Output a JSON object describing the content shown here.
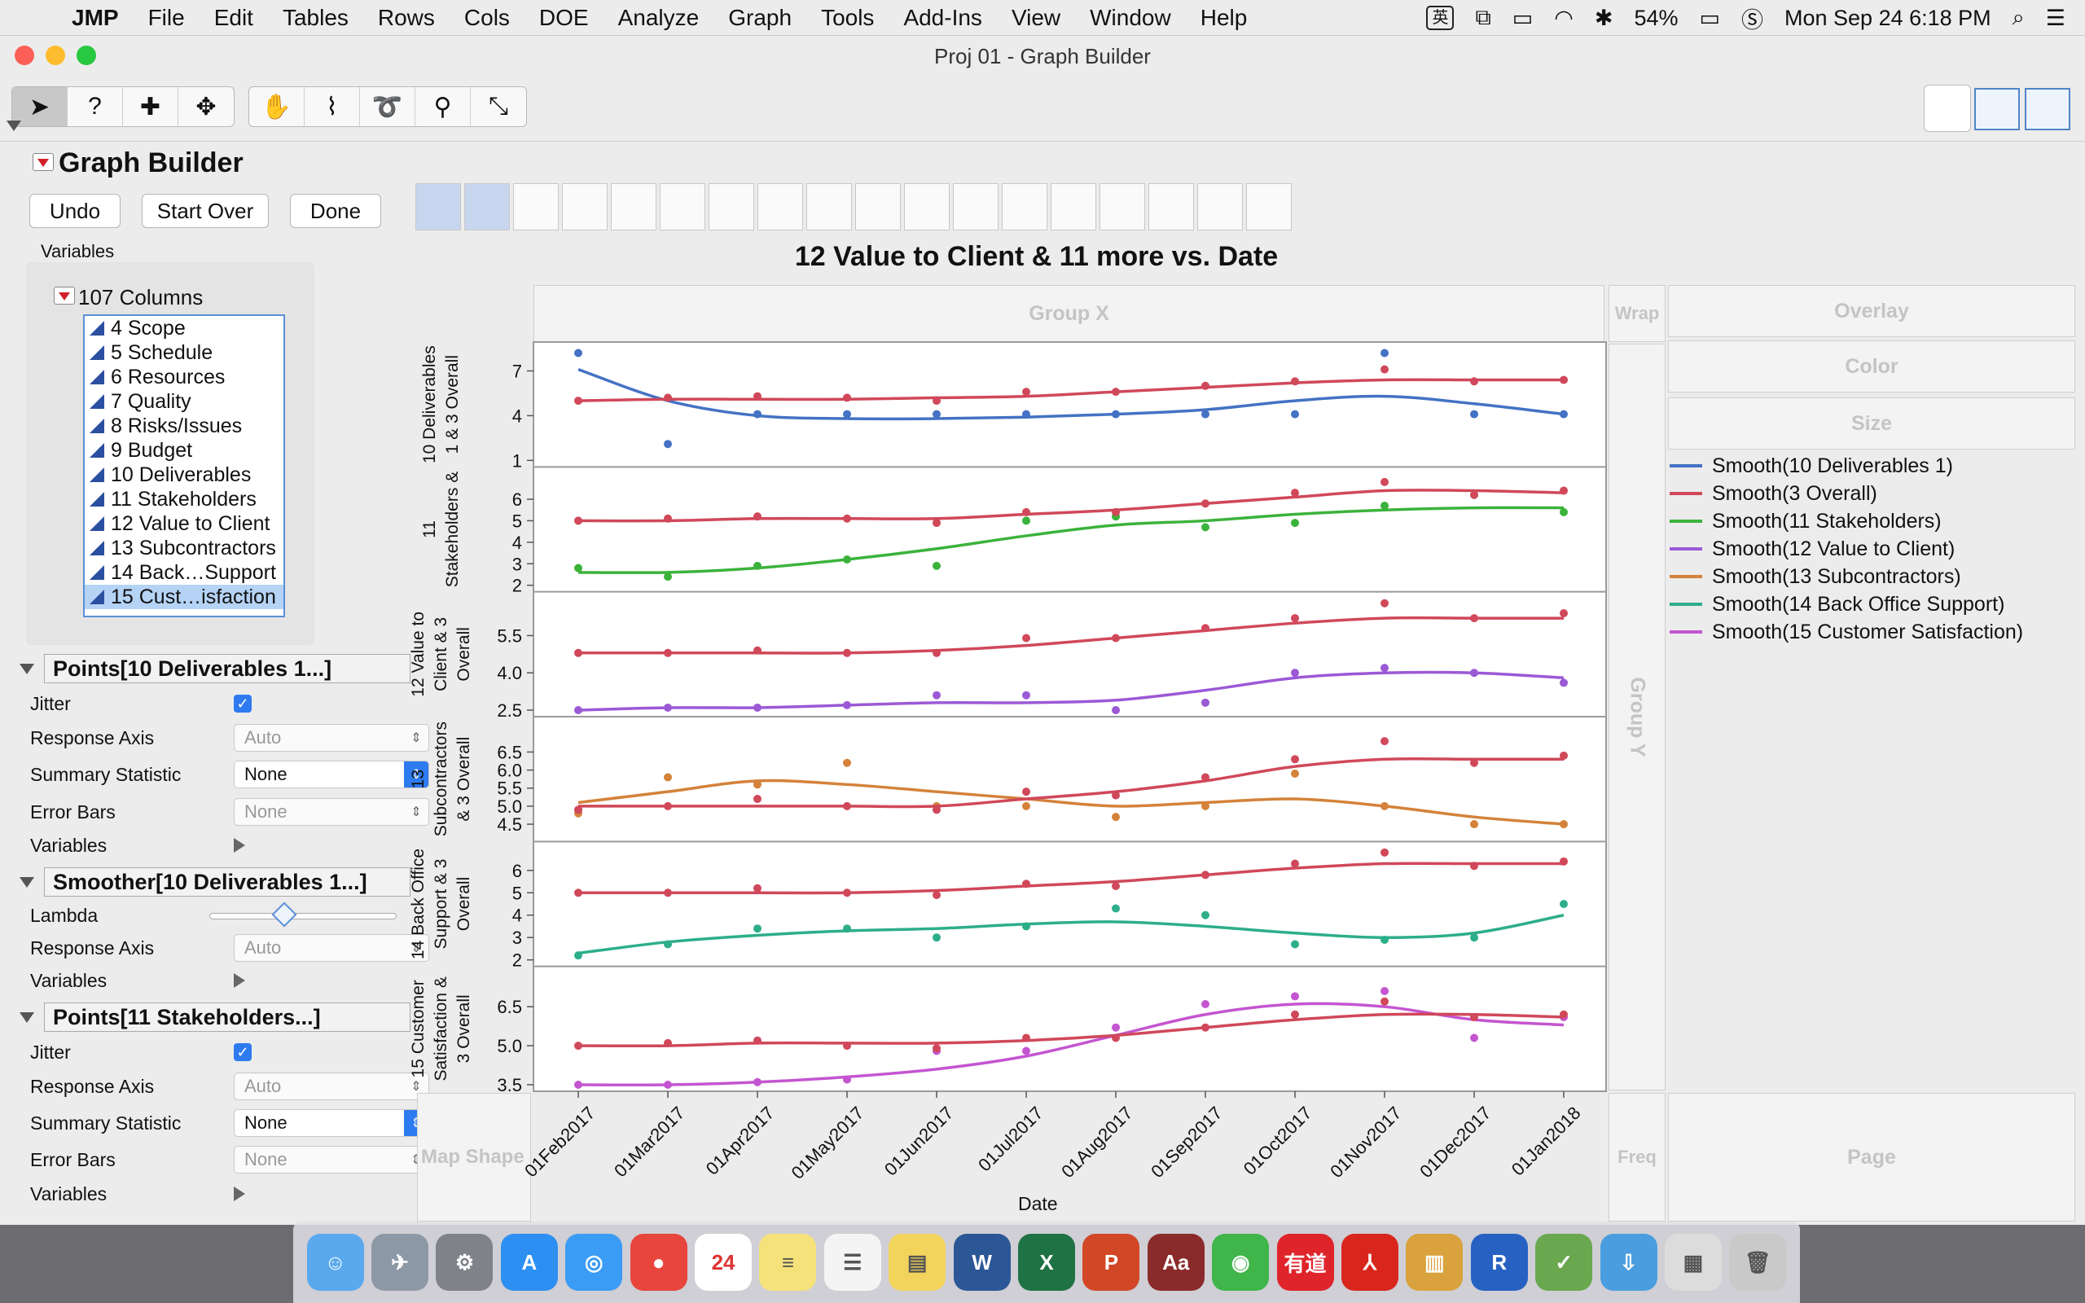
{
  "menubar": {
    "app": "JMP",
    "items": [
      "File",
      "Edit",
      "Tables",
      "Rows",
      "Cols",
      "DOE",
      "Analyze",
      "Graph",
      "Tools",
      "Add-Ins",
      "View",
      "Window",
      "Help"
    ],
    "ime": "英",
    "battery": "54%",
    "datetime": "Mon Sep 24  6:18 PM"
  },
  "window": {
    "title": "Proj 01 - Graph Builder"
  },
  "panel": {
    "title": "Graph Builder",
    "undo": "Undo",
    "start_over": "Start Over",
    "done": "Done",
    "variables_label": "Variables",
    "columns_header": "107 Columns",
    "columns": [
      "4 Scope",
      "5 Schedule",
      "6 Resources",
      "7 Quality",
      "8 Risks/Issues",
      "9 Budget",
      "10 Deliverables",
      "11 Stakeholders",
      "12 Value to Client",
      "13 Subcontractors",
      "14 Back…Support",
      "15 Cust…isfaction"
    ],
    "points1": {
      "title": "Points[10 Deliverables 1...]",
      "jitter": "Jitter",
      "response_axis": "Response Axis",
      "response_axis_value": "Auto",
      "summary_statistic": "Summary Statistic",
      "summary_statistic_value": "None",
      "error_bars": "Error Bars",
      "error_bars_value": "None",
      "variables": "Variables"
    },
    "smoother": {
      "title": "Smoother[10 Deliverables 1...]",
      "lambda": "Lambda",
      "lambda_position": 0.4,
      "response_axis": "Response Axis",
      "response_axis_value": "Auto",
      "variables": "Variables"
    },
    "points2": {
      "title": "Points[11 Stakeholders...]",
      "jitter": "Jitter",
      "response_axis": "Response Axis",
      "response_axis_value": "Auto",
      "summary_statistic": "Summary Statistic",
      "summary_statistic_value": "None",
      "error_bars": "Error Bars",
      "error_bars_value": "None",
      "variables": "Variables"
    }
  },
  "zones": {
    "group_x": "Group X",
    "wrap": "Wrap",
    "overlay": "Overlay",
    "color": "Color",
    "size": "Size",
    "group_y": "Group Y",
    "map_shape": "Map Shape",
    "freq": "Freq",
    "page": "Page"
  },
  "colors": {
    "blue": "#4472c4",
    "red": "#d0485a",
    "green": "#3bb33b",
    "purple": "#9b59d6",
    "orange": "#d4823a",
    "teal": "#2dae8a",
    "magenta": "#c455d0"
  },
  "chart_data": {
    "type": "scatter",
    "title": "12 Value to Client & 11 more vs. Date",
    "xlabel": "Date",
    "x": [
      "01Feb2017",
      "01Mar2017",
      "01Apr2017",
      "01May2017",
      "01Jun2017",
      "01Jul2017",
      "01Aug2017",
      "01Sep2017",
      "01Oct2017",
      "01Nov2017",
      "01Dec2017",
      "01Jan2018"
    ],
    "legend": [
      "Smooth(10 Deliverables 1)",
      "Smooth(3 Overall)",
      "Smooth(11 Stakeholders)",
      "Smooth(12 Value to Client)",
      "Smooth(13 Subcontractors)",
      "Smooth(14 Back Office Support)",
      "Smooth(15 Customer Satisfaction)"
    ],
    "legend_colors": [
      "#4472c4",
      "#d0485a",
      "#3bb33b",
      "#9b59d6",
      "#d4823a",
      "#2dae8a",
      "#c455d0"
    ],
    "panels": [
      {
        "ylabel": [
          "10 Deliverables",
          "1 & 3 Overall"
        ],
        "ylim": [
          1,
          8.5
        ],
        "ticks": [
          1,
          4,
          7
        ],
        "series": [
          {
            "name": "10 Deliverables 1",
            "color": "#4472c4",
            "points": [
              8.2,
              2.1,
              4.1,
              4.1,
              4.1,
              4.1,
              4.1,
              4.1,
              4.1,
              8.2,
              4.1,
              4.1
            ],
            "smooth": [
              7.1,
              5.0,
              4.0,
              3.8,
              3.8,
              3.9,
              4.1,
              4.4,
              5.0,
              5.3,
              4.8,
              4.1
            ]
          },
          {
            "name": "3 Overall",
            "color": "#d0485a",
            "points": [
              5.0,
              5.2,
              5.3,
              5.2,
              5.0,
              5.6,
              5.6,
              6.0,
              6.3,
              7.1,
              6.3,
              6.4
            ],
            "smooth": [
              5.0,
              5.1,
              5.1,
              5.1,
              5.2,
              5.3,
              5.6,
              5.9,
              6.2,
              6.4,
              6.4,
              6.4
            ]
          }
        ]
      },
      {
        "ylabel": [
          "11",
          "Stakeholders &"
        ],
        "ylim": [
          2,
          7.2
        ],
        "ticks": [
          2,
          3,
          4,
          5,
          6
        ],
        "series": [
          {
            "name": "11 Stakeholders",
            "color": "#3bb33b",
            "points": [
              2.8,
              2.4,
              2.9,
              3.2,
              2.9,
              5.0,
              5.2,
              4.7,
              4.9,
              5.7,
              6.2,
              5.4
            ],
            "smooth": [
              2.6,
              2.6,
              2.8,
              3.2,
              3.7,
              4.3,
              4.8,
              5.0,
              5.3,
              5.5,
              5.6,
              5.6
            ]
          },
          {
            "name": "3 Overall",
            "color": "#d0485a",
            "points": [
              5.0,
              5.1,
              5.2,
              5.1,
              4.9,
              5.4,
              5.4,
              5.8,
              6.3,
              6.8,
              6.2,
              6.4
            ],
            "smooth": [
              5.0,
              5.0,
              5.1,
              5.1,
              5.1,
              5.3,
              5.5,
              5.8,
              6.1,
              6.4,
              6.4,
              6.3
            ]
          }
        ]
      },
      {
        "ylabel": [
          "12 Value to",
          "Client & 3",
          "Overall"
        ],
        "ylim": [
          2.5,
          7.0
        ],
        "ticks": [
          2.5,
          4.0,
          5.5
        ],
        "series": [
          {
            "name": "12 Value to Client",
            "color": "#9b59d6",
            "points": [
              2.5,
              2.6,
              2.6,
              2.7,
              3.1,
              3.1,
              2.5,
              2.8,
              4.0,
              4.2,
              4.0,
              3.6
            ],
            "smooth": [
              2.5,
              2.6,
              2.6,
              2.7,
              2.8,
              2.8,
              2.9,
              3.3,
              3.8,
              4.0,
              4.0,
              3.8
            ]
          },
          {
            "name": "3 Overall",
            "color": "#d0485a",
            "points": [
              4.8,
              4.8,
              4.9,
              4.8,
              4.8,
              5.4,
              5.4,
              5.8,
              6.2,
              6.8,
              6.2,
              6.4
            ],
            "smooth": [
              4.8,
              4.8,
              4.8,
              4.8,
              4.9,
              5.1,
              5.4,
              5.7,
              6.0,
              6.2,
              6.2,
              6.2
            ]
          }
        ]
      },
      {
        "ylabel": [
          "13",
          "Subcontractors",
          "& 3 Overall"
        ],
        "ylim": [
          4.2,
          7.3
        ],
        "ticks": [
          4.5,
          5.0,
          5.5,
          6.0,
          6.5
        ],
        "series": [
          {
            "name": "13 Subcontractors",
            "color": "#d4823a",
            "points": [
              4.8,
              5.8,
              5.6,
              6.2,
              5.0,
              5.0,
              4.7,
              5.0,
              5.9,
              5.0,
              4.5,
              4.5
            ],
            "smooth": [
              5.1,
              5.4,
              5.7,
              5.6,
              5.4,
              5.2,
              5.0,
              5.1,
              5.2,
              5.0,
              4.7,
              4.5
            ]
          },
          {
            "name": "3 Overall",
            "color": "#d0485a",
            "points": [
              4.9,
              5.0,
              5.2,
              5.0,
              4.9,
              5.4,
              5.3,
              5.8,
              6.3,
              6.8,
              6.2,
              6.4
            ],
            "smooth": [
              5.0,
              5.0,
              5.0,
              5.0,
              5.0,
              5.2,
              5.4,
              5.7,
              6.1,
              6.3,
              6.3,
              6.3
            ]
          }
        ]
      },
      {
        "ylabel": [
          "14 Back Office",
          "Support & 3",
          "Overall"
        ],
        "ylim": [
          2,
          7.0
        ],
        "ticks": [
          2,
          3,
          4,
          5,
          6
        ],
        "series": [
          {
            "name": "14 Back Office Support",
            "color": "#2dae8a",
            "points": [
              2.2,
              2.7,
              3.4,
              3.4,
              3.0,
              3.5,
              4.3,
              4.0,
              2.7,
              2.9,
              3.0,
              4.5
            ],
            "smooth": [
              2.3,
              2.8,
              3.1,
              3.3,
              3.4,
              3.6,
              3.7,
              3.5,
              3.2,
              3.0,
              3.2,
              4.0
            ]
          },
          {
            "name": "3 Overall",
            "color": "#d0485a",
            "points": [
              5.0,
              5.0,
              5.2,
              5.0,
              4.9,
              5.4,
              5.3,
              5.8,
              6.3,
              6.8,
              6.2,
              6.4
            ],
            "smooth": [
              5.0,
              5.0,
              5.0,
              5.0,
              5.1,
              5.3,
              5.5,
              5.8,
              6.1,
              6.3,
              6.3,
              6.3
            ]
          }
        ]
      },
      {
        "ylabel": [
          "15 Customer",
          "Satisfaction &",
          "3 Overall"
        ],
        "ylim": [
          3.5,
          7.8
        ],
        "ticks": [
          3.5,
          5.0,
          6.5
        ],
        "series": [
          {
            "name": "15 Customer Satisfaction",
            "color": "#c455d0",
            "points": [
              3.5,
              3.5,
              3.6,
              3.7,
              4.8,
              4.8,
              5.7,
              6.6,
              6.9,
              7.1,
              5.3,
              6.1
            ],
            "smooth": [
              3.5,
              3.5,
              3.6,
              3.8,
              4.1,
              4.6,
              5.4,
              6.2,
              6.6,
              6.5,
              6.0,
              5.8
            ]
          },
          {
            "name": "3 Overall",
            "color": "#d0485a",
            "points": [
              5.0,
              5.1,
              5.2,
              5.0,
              4.9,
              5.3,
              5.3,
              5.7,
              6.2,
              6.7,
              6.1,
              6.2
            ],
            "smooth": [
              5.0,
              5.0,
              5.1,
              5.1,
              5.1,
              5.2,
              5.4,
              5.7,
              6.0,
              6.2,
              6.2,
              6.1
            ]
          }
        ]
      }
    ]
  }
}
